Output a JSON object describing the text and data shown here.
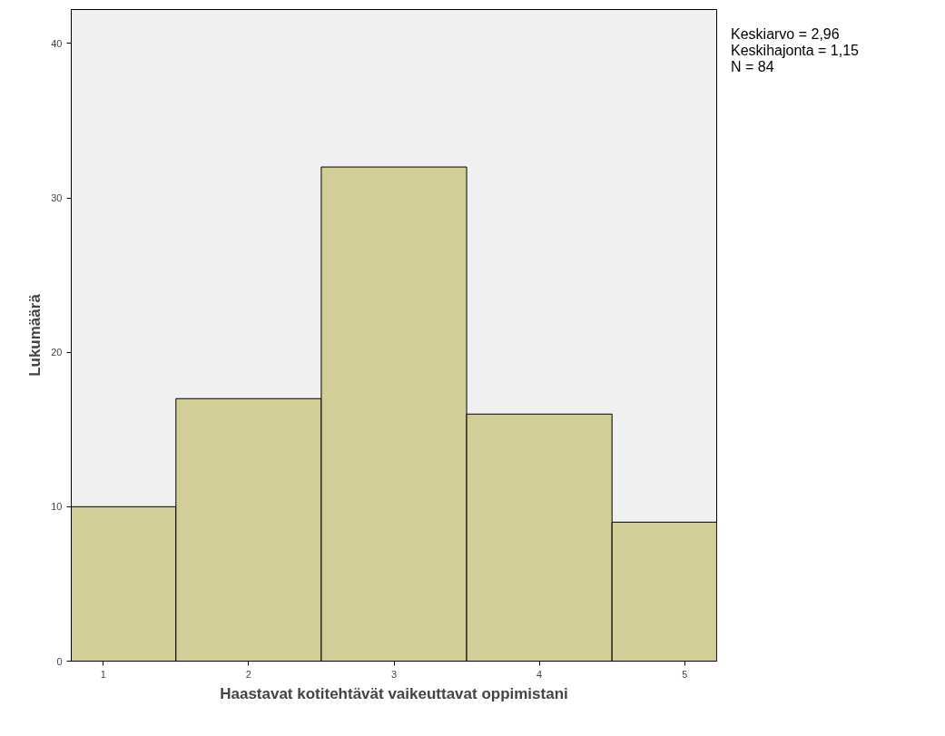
{
  "chart_data": {
    "type": "histogram",
    "xlabel": "Haastavat kotitehtävät vaikeuttavat oppimistani",
    "ylabel": "Lukumäärä",
    "bins": [
      0.78,
      1.5,
      2.5,
      3.5,
      4.5,
      5.22
    ],
    "values": [
      10,
      17,
      32,
      16,
      9
    ],
    "color": "#d3ce97",
    "xlim": [
      0.78,
      5.22
    ],
    "xticks": [
      1,
      2,
      3,
      4,
      5
    ],
    "ylim": [
      0,
      42.2
    ],
    "yticks": [
      0,
      10,
      20,
      30,
      40
    ],
    "grid": false,
    "annotations": [
      "Keskiarvo = 2,96",
      "Keskihajonta = 1,15",
      "N = 84"
    ]
  }
}
